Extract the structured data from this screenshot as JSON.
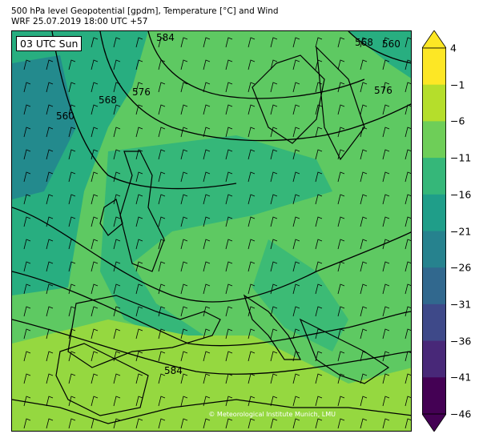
{
  "header": {
    "line1": "500 hPa level Geopotential [gpdm], Temperature [°C] and Wind",
    "line2": "WRF 25.07.2019 18:00 UTC +57"
  },
  "map": {
    "time_label": "03 UTC Sun",
    "credit": "© Meteorological Institute Munich, LMU",
    "contour_labels": [
      "584",
      "568",
      "560",
      "576",
      "568",
      "560",
      "576",
      "584"
    ],
    "colors": {
      "ocean_dark": "#238a8d",
      "cold": "#28ae80",
      "mid": "#3cbb75",
      "warm": "#5ec962",
      "hot": "#95d840"
    }
  },
  "colorbar": {
    "ticks": [
      "4",
      "−1",
      "−6",
      "−11",
      "−16",
      "−21",
      "−26",
      "−31",
      "−36",
      "−41",
      "−46"
    ],
    "colors": [
      "#fde725",
      "#b5de2b",
      "#6ece58",
      "#35b779",
      "#1f9e89",
      "#26828e",
      "#31688e",
      "#3e4989",
      "#482878",
      "#440154"
    ]
  }
}
